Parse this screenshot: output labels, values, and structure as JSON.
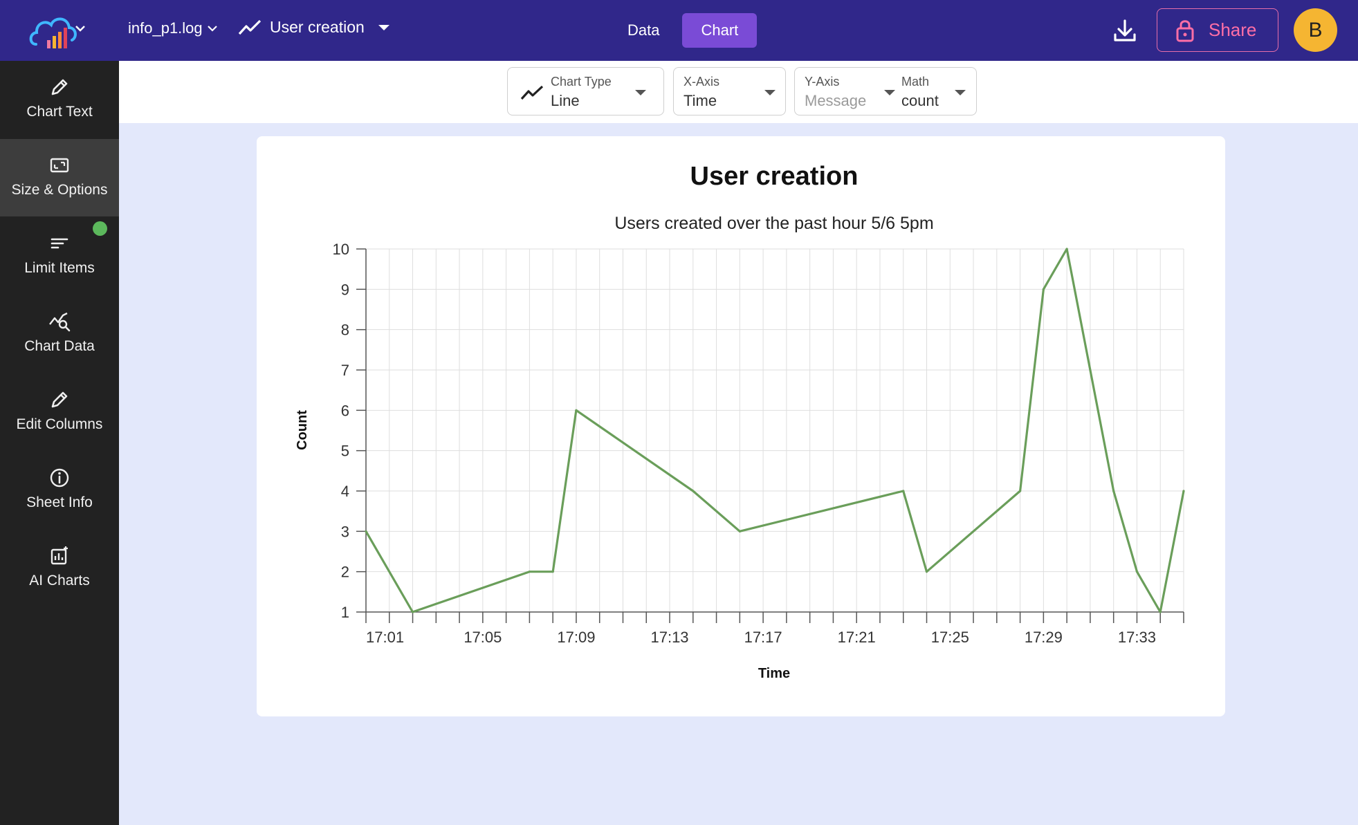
{
  "header": {
    "file_name": "info_p1.log",
    "view_name": "User creation",
    "tabs": [
      {
        "label": "Data",
        "active": false
      },
      {
        "label": "Chart",
        "active": true
      }
    ],
    "share_label": "Share",
    "avatar_initial": "B",
    "colors": {
      "bar": "#30278a",
      "active_tab": "#7a4bd6",
      "share": "#ff6fa6",
      "avatar": "#f5b532"
    }
  },
  "sidebar": {
    "items": [
      {
        "label": "Chart Text",
        "icon": "pencil-icon"
      },
      {
        "label": "Size & Options",
        "icon": "resize-icon",
        "active": true
      },
      {
        "label": "Limit Items",
        "icon": "filter-lines-icon",
        "indicator": true
      },
      {
        "label": "Chart Data",
        "icon": "chart-search-icon"
      },
      {
        "label": "Edit Columns",
        "icon": "pencil-icon"
      },
      {
        "label": "Sheet Info",
        "icon": "info-icon"
      },
      {
        "label": "AI Charts",
        "icon": "ai-chart-icon"
      }
    ]
  },
  "options": {
    "chart_type": {
      "label": "Chart Type",
      "value": "Line"
    },
    "x_axis": {
      "label": "X-Axis",
      "value": "Time"
    },
    "y_axis": {
      "label": "Y-Axis",
      "placeholder": "Message"
    },
    "math": {
      "label": "Math",
      "value": "count"
    }
  },
  "chart_data": {
    "type": "line",
    "title": "User creation",
    "subtitle": "Users created over the past hour 5/6 5pm",
    "xlabel": "Time",
    "ylabel": "Count",
    "ylim": [
      1,
      10
    ],
    "y_ticks": [
      "1",
      "2",
      "3",
      "4",
      "5",
      "6",
      "7",
      "8",
      "9",
      "10"
    ],
    "x_ticks": [
      "17:01",
      "17:05",
      "17:09",
      "17:13",
      "17:17",
      "17:21",
      "17:25",
      "17:29",
      "17:33"
    ],
    "grid": true,
    "line_color": "#6a9e5a",
    "series": [
      {
        "x": [
          "17:00",
          "17:02",
          "17:07",
          "17:08",
          "17:09",
          "17:14",
          "17:16",
          "17:23",
          "17:24",
          "17:28",
          "17:29",
          "17:30",
          "17:32",
          "17:33",
          "17:34",
          "17:35"
        ],
        "values": [
          3,
          1,
          2,
          2,
          6,
          4,
          3,
          4,
          2,
          4,
          9,
          10,
          4,
          2,
          1,
          4
        ]
      }
    ]
  }
}
